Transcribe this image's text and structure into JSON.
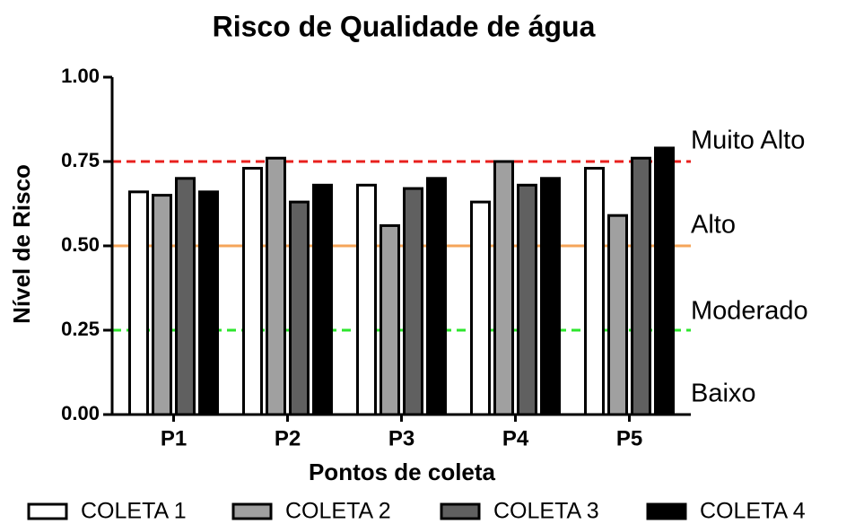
{
  "chart_data": {
    "type": "bar",
    "title": "Risco de Qualidade de água",
    "x_label": "Pontos de coleta",
    "y_label": "Nível de Risco",
    "categories": [
      "P1",
      "P2",
      "P3",
      "P4",
      "P5"
    ],
    "series": [
      {
        "name": "COLETA 1",
        "color": "#ffffff",
        "values": [
          0.66,
          0.73,
          0.68,
          0.63,
          0.73
        ]
      },
      {
        "name": "COLETA 2",
        "color": "#a0a0a0",
        "values": [
          0.65,
          0.76,
          0.56,
          0.75,
          0.59
        ]
      },
      {
        "name": "COLETA 3",
        "color": "#606060",
        "values": [
          0.7,
          0.63,
          0.67,
          0.68,
          0.76
        ]
      },
      {
        "name": "COLETA 4",
        "color": "#000000",
        "values": [
          0.66,
          0.68,
          0.7,
          0.7,
          0.79
        ]
      }
    ],
    "ylim": [
      0,
      1
    ],
    "yticks": [
      {
        "value": 0,
        "label": "0.00"
      },
      {
        "value": 0.25,
        "label": "0.25"
      },
      {
        "value": 0.5,
        "label": "0.50"
      },
      {
        "value": 0.75,
        "label": "0.75"
      },
      {
        "value": 1,
        "label": "1.00"
      }
    ],
    "reference_lines": [
      {
        "value": 0.75,
        "color": "#e8201e",
        "dashed": true
      },
      {
        "value": 0.5,
        "color": "#f5a55a",
        "dashed": false
      },
      {
        "value": 0.25,
        "color": "#2ee62e",
        "dashed": true
      }
    ],
    "risk_levels": [
      "Muito Alto",
      "Alto",
      "Moderado",
      "Baixo"
    ],
    "legend": "bottom"
  }
}
